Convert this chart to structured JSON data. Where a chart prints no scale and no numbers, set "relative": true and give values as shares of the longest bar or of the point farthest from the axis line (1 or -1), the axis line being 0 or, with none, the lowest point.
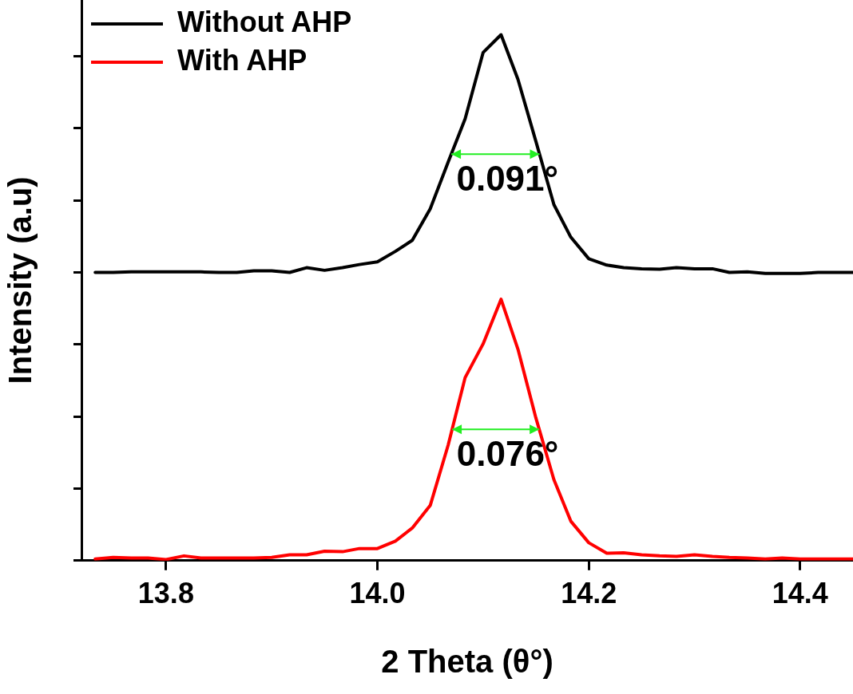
{
  "chart_data": {
    "type": "line",
    "relative": true,
    "xlabel": "2 Theta (θ°)",
    "ylabel": "Intensity (a.u)",
    "x": [
      13.733,
      13.75,
      13.767,
      13.783,
      13.8,
      13.817,
      13.833,
      13.85,
      13.867,
      13.883,
      13.9,
      13.917,
      13.933,
      13.95,
      13.967,
      13.983,
      14.0,
      14.017,
      14.033,
      14.05,
      14.067,
      14.083,
      14.1,
      14.117,
      14.133,
      14.15,
      14.167,
      14.183,
      14.2,
      14.217,
      14.233,
      14.25,
      14.267,
      14.283,
      14.3,
      14.317,
      14.333,
      14.35,
      14.367,
      14.383,
      14.4,
      14.417,
      14.433,
      14.45
    ],
    "xlim": [
      13.72,
      14.45
    ],
    "xticks": [
      {
        "value": 13.8,
        "label": "13.8"
      },
      {
        "value": 14,
        "label": "14.0"
      },
      {
        "value": 14.2,
        "label": "14.2"
      },
      {
        "value": 14.4,
        "label": "14.4"
      }
    ],
    "series": [
      {
        "name": "Without AHP",
        "color": "#000000",
        "values": [
          0.548,
          0.548,
          0.549,
          0.549,
          0.549,
          0.549,
          0.549,
          0.548,
          0.548,
          0.551,
          0.551,
          0.548,
          0.557,
          0.552,
          0.557,
          0.563,
          0.568,
          0.588,
          0.609,
          0.669,
          0.758,
          0.84,
          0.966,
          1,
          0.915,
          0.797,
          0.677,
          0.615,
          0.574,
          0.562,
          0.557,
          0.555,
          0.554,
          0.557,
          0.555,
          0.555,
          0.548,
          0.549,
          0.546,
          0.546,
          0.546,
          0.548,
          0.548,
          0.548
        ]
      },
      {
        "name": "With AHP",
        "color": "#ff0000",
        "values": [
          0.003,
          0.006,
          0.005,
          0.005,
          0.002,
          0.009,
          0.005,
          0.005,
          0.005,
          0.005,
          0.006,
          0.011,
          0.011,
          0.018,
          0.017,
          0.023,
          0.023,
          0.037,
          0.062,
          0.105,
          0.22,
          0.348,
          0.412,
          0.497,
          0.402,
          0.271,
          0.154,
          0.075,
          0.034,
          0.014,
          0.015,
          0.011,
          0.009,
          0.008,
          0.011,
          0.008,
          0.006,
          0.005,
          0.003,
          0.005,
          0.003,
          0.003,
          0.003,
          0.003
        ]
      }
    ],
    "annotations": [
      "0.091°",
      "0.076°"
    ],
    "legend": "top left",
    "marker": "none",
    "line_style": "solid",
    "grid": false
  }
}
